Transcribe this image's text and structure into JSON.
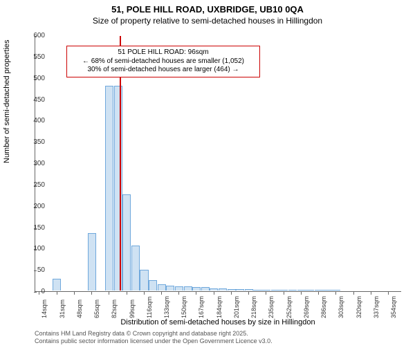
{
  "title": "51, POLE HILL ROAD, UXBRIDGE, UB10 0QA",
  "subtitle": "Size of property relative to semi-detached houses in Hillingdon",
  "ylabel": "Number of semi-detached properties",
  "xlabel": "Distribution of semi-detached houses by size in Hillingdon",
  "footer_line1": "Contains HM Land Registry data © Crown copyright and database right 2025.",
  "footer_line2": "Contains public sector information licensed under the Open Government Licence v3.0.",
  "chart": {
    "type": "histogram",
    "background_color": "#ffffff",
    "axis_color": "#666666",
    "bar_fill": "#cfe2f3",
    "bar_stroke": "#6fa8dc",
    "marker_color": "#cc0000",
    "annot_border": "#cc0000",
    "annot_bg": "#ffffff",
    "text_color": "#333333",
    "ylim": [
      0,
      600
    ],
    "ytick_step": 50,
    "x_start": 14,
    "x_step": 8.5,
    "x_count": 42,
    "xtick_labels": [
      "14sqm",
      "31sqm",
      "48sqm",
      "65sqm",
      "82sqm",
      "99sqm",
      "116sqm",
      "133sqm",
      "150sqm",
      "167sqm",
      "184sqm",
      "201sqm",
      "218sqm",
      "235sqm",
      "252sqm",
      "269sqm",
      "286sqm",
      "303sqm",
      "320sqm",
      "337sqm",
      "354sqm"
    ],
    "values": [
      0,
      0,
      28,
      0,
      0,
      0,
      135,
      0,
      480,
      480,
      225,
      105,
      48,
      25,
      15,
      12,
      10,
      10,
      8,
      8,
      5,
      5,
      4,
      3,
      3,
      2,
      2,
      2,
      2,
      1,
      1,
      1,
      1,
      1,
      1,
      0,
      0,
      0,
      0,
      0,
      0,
      0
    ],
    "marker_x_sqm": 96
  },
  "annotation": {
    "line1": "51 POLE HILL ROAD: 96sqm",
    "line2": "← 68% of semi-detached houses are smaller (1,052)",
    "line3": "30% of semi-detached houses are larger (464) →"
  }
}
